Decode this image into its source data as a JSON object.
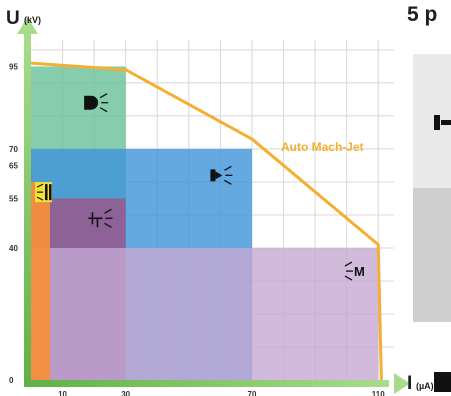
{
  "side_panel": {
    "title": "5 p",
    "colors": {
      "top": "#e9e9e9",
      "bottom": "#cfcfcf",
      "glyph": "#111111"
    }
  },
  "chart_data": {
    "type": "area",
    "x_axis": {
      "label": "I",
      "unit": "(µA)",
      "range": [
        0,
        115
      ],
      "ticks": [
        10,
        30,
        70,
        110
      ]
    },
    "y_axis": {
      "label": "U",
      "unit": "(kV)",
      "range": [
        0,
        103
      ],
      "ticks": [
        0,
        40,
        55,
        65,
        70,
        95
      ]
    },
    "grid": true,
    "colors": {
      "axis": "#79c15f",
      "grid": "#d8d8d8",
      "curve": "#f5ae32",
      "label_text": "#f5ae32",
      "icon": "#111111"
    },
    "regions": [
      {
        "icon": "nozzle-wide-icon",
        "x": [
          0,
          30
        ],
        "y": [
          0,
          95
        ],
        "color": "#69c198",
        "opacity": 0.8
      },
      {
        "icon": "nozzle-jet-icon",
        "x": [
          0,
          70
        ],
        "y": [
          0,
          70
        ],
        "color": "#3f93db",
        "opacity": 0.8
      },
      {
        "icon": "manual-gun-icon",
        "x": [
          0,
          30
        ],
        "y": [
          0,
          55
        ],
        "color": "#b93a70",
        "opacity": 0.6
      },
      {
        "icon": "nozzle-m-icon",
        "label": "M",
        "x": [
          0,
          110
        ],
        "y": [
          0,
          40
        ],
        "color": "#c6a9d3",
        "opacity": 0.8
      },
      {
        "icon": "cartridge-icon",
        "x": [
          0,
          6
        ],
        "y": [
          0,
          60
        ],
        "color": "#f58e3c",
        "opacity": 0.95
      }
    ],
    "curve": {
      "name": "Auto Mach-Jet",
      "points": [
        [
          0,
          96
        ],
        [
          30,
          94
        ],
        [
          70,
          73
        ],
        [
          110,
          41
        ],
        [
          111,
          0
        ]
      ]
    }
  }
}
